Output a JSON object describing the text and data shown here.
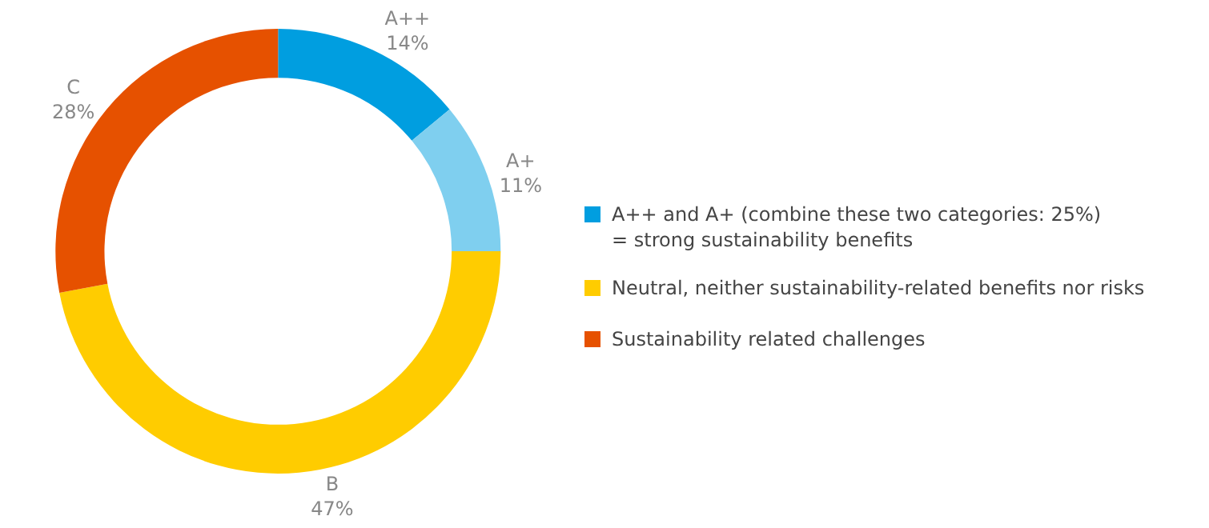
{
  "chart_data": {
    "type": "donut",
    "categories": [
      "A++",
      "A+",
      "B",
      "C"
    ],
    "values": [
      14,
      11,
      47,
      28
    ],
    "value_labels": [
      "14%",
      "11%",
      "47%",
      "28%"
    ],
    "colors": [
      "#009ee0",
      "#7fcfef",
      "#ffcc00",
      "#e65100"
    ],
    "annotations": [
      "A++ and A+ (combine these two categories: 25%)\n= strong sustainability benefits",
      "Neutral, neither sustainability-related benefits nor risks",
      "Sustainability related challenges"
    ],
    "legend": false
  }
}
